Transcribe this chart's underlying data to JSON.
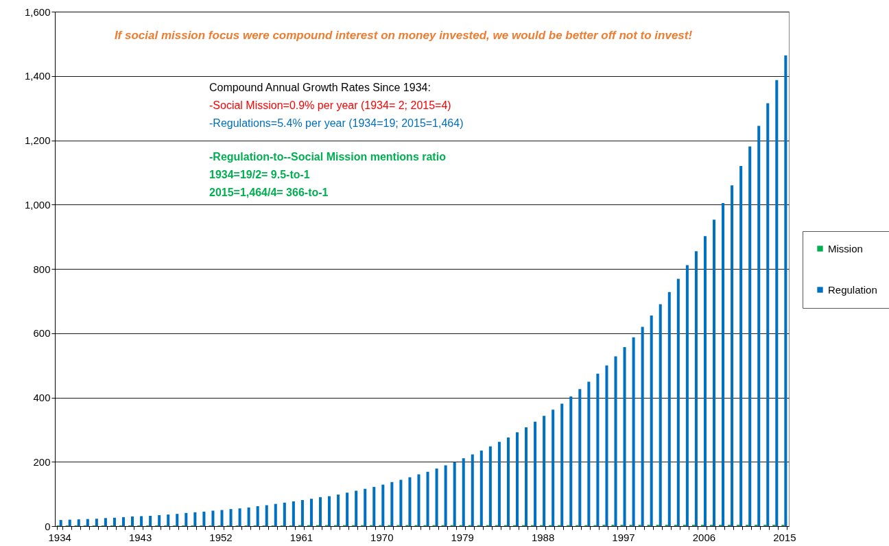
{
  "chart_data": {
    "type": "bar",
    "categories": [
      "1934",
      null,
      null,
      null,
      null,
      null,
      null,
      null,
      null,
      "1943",
      null,
      null,
      null,
      null,
      null,
      null,
      null,
      null,
      "1952",
      null,
      null,
      null,
      null,
      null,
      null,
      null,
      null,
      "1961",
      null,
      null,
      null,
      null,
      null,
      null,
      null,
      null,
      "1970",
      null,
      null,
      null,
      null,
      null,
      null,
      null,
      null,
      "1979",
      null,
      null,
      null,
      null,
      null,
      null,
      null,
      null,
      "1988",
      null,
      null,
      null,
      null,
      null,
      null,
      null,
      null,
      "1997",
      null,
      null,
      null,
      null,
      null,
      null,
      null,
      null,
      "2006",
      null,
      null,
      null,
      null,
      null,
      null,
      null,
      null,
      "2015"
    ],
    "series": [
      {
        "name": "Mission",
        "color": "#00b050",
        "values": [
          2,
          2,
          2,
          2,
          2,
          2,
          2,
          2,
          2,
          2,
          2,
          2,
          2,
          2,
          2,
          2,
          2,
          2,
          2,
          2,
          2,
          2,
          2,
          2,
          2,
          2,
          2,
          3,
          3,
          3,
          3,
          3,
          3,
          3,
          3,
          3,
          3,
          3,
          3,
          3,
          3,
          3,
          3,
          3,
          3,
          3,
          3,
          3,
          3,
          3,
          3,
          3,
          3,
          3,
          3,
          3,
          3,
          3,
          3,
          3,
          3,
          4,
          4,
          4,
          4,
          4,
          4,
          4,
          4,
          4,
          4,
          4,
          4,
          4,
          4,
          4,
          4,
          4,
          4,
          4,
          4,
          4
        ]
      },
      {
        "name": "Regulation",
        "color": "#0070c0",
        "values": [
          19,
          20,
          21,
          22,
          23,
          25,
          26,
          28,
          30,
          31,
          32,
          34,
          36,
          38,
          41,
          43,
          45,
          48,
          50,
          53,
          55,
          58,
          62,
          65,
          69,
          73,
          77,
          81,
          85,
          90,
          93,
          98,
          104,
          110,
          116,
          122,
          129,
          137,
          144,
          152,
          161,
          169,
          179,
          189,
          199,
          211,
          223,
          235,
          248,
          262,
          276,
          292,
          307,
          325,
          343,
          362,
          381,
          403,
          426,
          449,
          474,
          500,
          528,
          557,
          587,
          620,
          655,
          690,
          728,
          769,
          812,
          855,
          902,
          953,
          1005,
          1060,
          1120,
          1181,
          1245,
          1315,
          1387,
          1464
        ]
      }
    ],
    "ylim": [
      0,
      1600
    ],
    "yticks": [
      0,
      200,
      400,
      600,
      800,
      {
        "value": 1000,
        "label": "1,000"
      },
      {
        "value": 1200,
        "label": "1,200"
      },
      {
        "value": 1400,
        "label": "1,400"
      },
      {
        "value": 1600,
        "label": "1,600"
      }
    ],
    "grid": "y",
    "legend": "right",
    "annotations": [
      "If social mission focus were compound interest on money invested, we would be better off not to invest!",
      "Compound Annual Growth Rates Since 1934:",
      "-Social Mission=0.9% per year (1934= 2; 2015=4)",
      "-Regulations=5.4% per year (1934=19; 2015=1,464)",
      "-Regulation-to--Social Mission mentions ratio",
      "1934=19/2=        9.5-to-1",
      "2015=1,464/4=  366-to-1"
    ]
  }
}
